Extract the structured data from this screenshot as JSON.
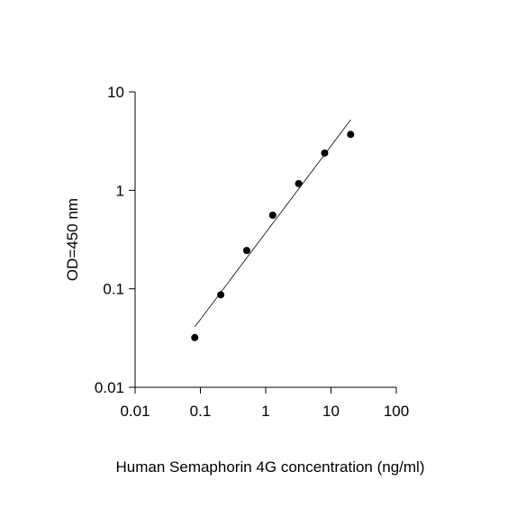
{
  "chart_data": {
    "type": "scatter",
    "x_label": "Human Semaphorin 4G concentration (ng/ml)",
    "y_label": "OD=450 nm",
    "x": [
      0.082,
      0.205,
      0.512,
      1.28,
      3.2,
      8,
      20
    ],
    "values": [
      0.032,
      0.087,
      0.245,
      0.56,
      1.17,
      2.39,
      3.7
    ],
    "color": "#000000",
    "fit_line": {
      "x": [
        0.082,
        20
      ],
      "values": [
        0.041,
        5.2
      ]
    },
    "xscale": "log",
    "yscale": "log",
    "xlim": [
      0.01,
      100
    ],
    "ylim": [
      0.01,
      10
    ],
    "xticks": [
      0.01,
      0.1,
      1,
      10,
      100
    ],
    "yticks": [
      0.01,
      0.1,
      1,
      10
    ]
  }
}
